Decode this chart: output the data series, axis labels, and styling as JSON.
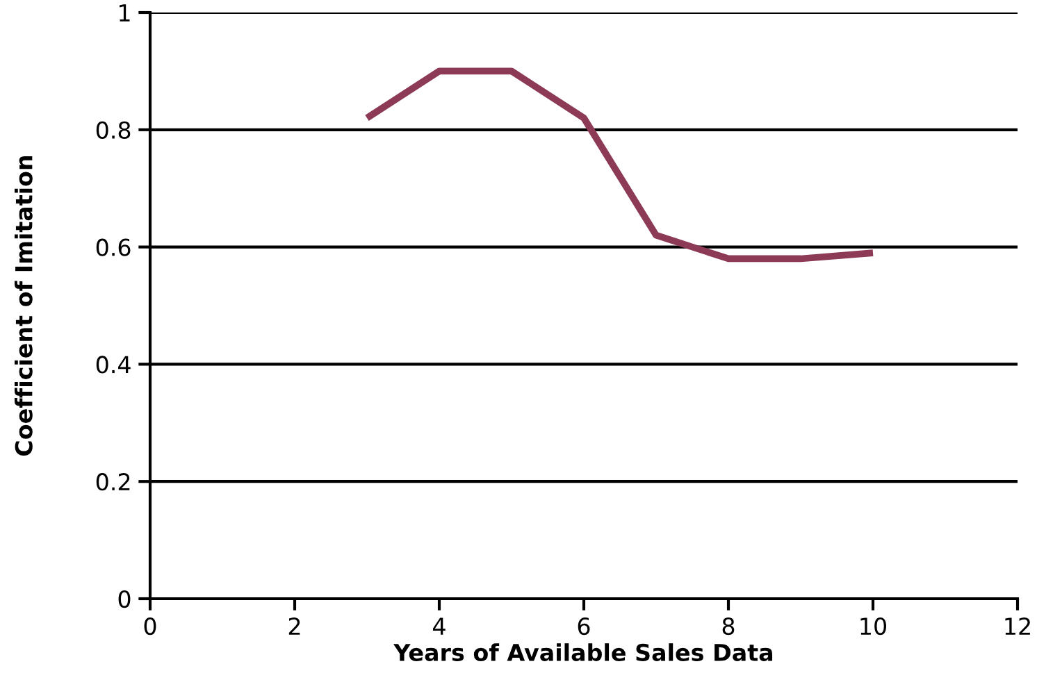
{
  "chart_data": {
    "type": "line",
    "xlabel": "Years of Available Sales Data",
    "ylabel": "Coefficient of Imitation",
    "x": [
      3,
      4,
      5,
      6,
      7,
      8,
      9,
      10
    ],
    "series": [
      {
        "color": "#8c3a56",
        "values": [
          0.82,
          0.9,
          0.9,
          0.82,
          0.62,
          0.58,
          0.58,
          0.59
        ]
      }
    ],
    "xlim": [
      0,
      12
    ],
    "xticks": [
      0,
      2,
      4,
      6,
      8,
      10,
      12
    ],
    "ylim": [
      0,
      1
    ],
    "yticks": [
      0,
      0.2,
      0.4,
      0.6,
      0.8,
      1
    ],
    "grid": "y",
    "marker": "none",
    "line_style": "solid",
    "legend": false
  }
}
